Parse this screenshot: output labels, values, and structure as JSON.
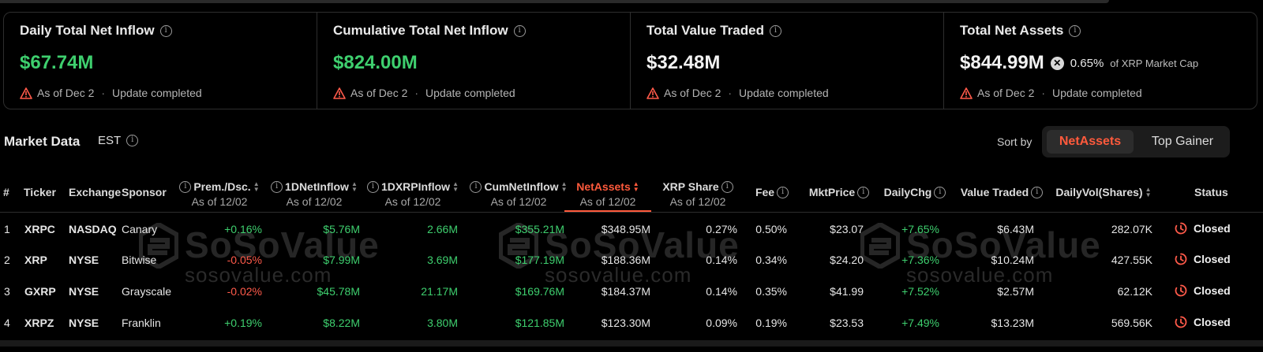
{
  "cards": [
    {
      "title": "Daily Total Net Inflow",
      "value": "$67.74M",
      "status": "As of Dec 2",
      "update": "Update completed",
      "value_color": "#3ecf6e"
    },
    {
      "title": "Cumulative Total Net Inflow",
      "value": "$824.00M",
      "status": "As of Dec 2",
      "update": "Update completed",
      "value_color": "#3ecf6e"
    },
    {
      "title": "Total Value Traded",
      "value": "$32.48M",
      "status": "As of Dec 2",
      "update": "Update completed",
      "value_color": "#f2f2f2"
    },
    {
      "title": "Total Net Assets",
      "value": "$844.99M",
      "pct": "0.65%",
      "pct_label": "of XRP Market Cap",
      "status": "As of Dec 2",
      "update": "Update completed",
      "value_color": "#f2f2f2"
    }
  ],
  "market": {
    "title": "Market Data",
    "timezone": "EST",
    "sort_label": "Sort by",
    "sort_options": [
      "NetAssets",
      "Top Gainer"
    ],
    "active_sort": "NetAssets"
  },
  "watermark": {
    "brand": "SoSoValue",
    "domain": "sosovalue.com"
  },
  "columns": {
    "num": "#",
    "ticker": "Ticker",
    "exchange": "Exchange",
    "sponsor": "Sponsor",
    "prem": "Prem./Dsc.",
    "inflow": "1DNetInflow",
    "xrpinflow": "1DXRPInflow",
    "cum": "CumNetInflow",
    "netassets": "NetAssets",
    "share": "XRP Share",
    "fee": "Fee",
    "mktprice": "MktPrice",
    "dailychg": "DailyChg",
    "traded": "Value Traded",
    "vol": "DailyVol(Shares)",
    "status": "Status",
    "asof": "As of 12/02"
  },
  "rows": [
    {
      "n": "1",
      "ticker": "XRPC",
      "exchange": "NASDAQ",
      "sponsor": "Canary",
      "prem": "+0.16%",
      "inflow": "$5.76M",
      "xrpinflow": "2.66M",
      "cum": "$355.21M",
      "netassets": "$348.95M",
      "share": "0.27%",
      "fee": "0.50%",
      "price": "$23.07",
      "chg": "+7.65%",
      "traded": "$6.43M",
      "vol": "282.07K",
      "status": "Closed"
    },
    {
      "n": "2",
      "ticker": "XRP",
      "exchange": "NYSE",
      "sponsor": "Bitwise",
      "prem": "-0.05%",
      "inflow": "$7.99M",
      "xrpinflow": "3.69M",
      "cum": "$177.19M",
      "netassets": "$188.36M",
      "share": "0.14%",
      "fee": "0.34%",
      "price": "$24.20",
      "chg": "+7.36%",
      "traded": "$10.24M",
      "vol": "427.55K",
      "status": "Closed"
    },
    {
      "n": "3",
      "ticker": "GXRP",
      "exchange": "NYSE",
      "sponsor": "Grayscale",
      "prem": "-0.02%",
      "inflow": "$45.78M",
      "xrpinflow": "21.17M",
      "cum": "$169.76M",
      "netassets": "$184.37M",
      "share": "0.14%",
      "fee": "0.35%",
      "price": "$41.99",
      "chg": "+7.52%",
      "traded": "$2.57M",
      "vol": "62.12K",
      "status": "Closed"
    },
    {
      "n": "4",
      "ticker": "XRPZ",
      "exchange": "NYSE",
      "sponsor": "Franklin",
      "prem": "+0.19%",
      "inflow": "$8.22M",
      "xrpinflow": "3.80M",
      "cum": "$121.85M",
      "netassets": "$123.30M",
      "share": "0.09%",
      "fee": "0.19%",
      "price": "$23.53",
      "chg": "+7.49%",
      "traded": "$13.23M",
      "vol": "569.56K",
      "status": "Closed"
    }
  ]
}
